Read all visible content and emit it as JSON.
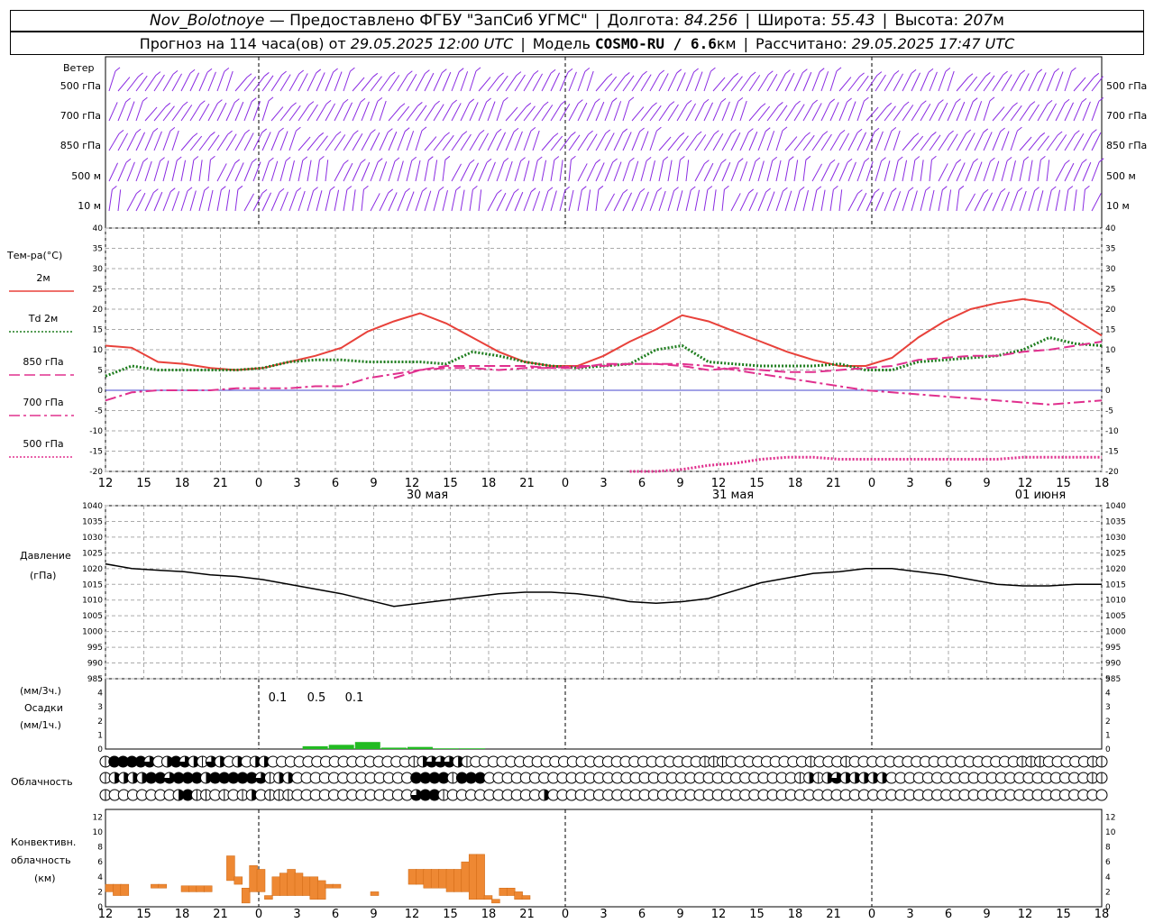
{
  "header": {
    "station": "Nov_Bolotnoye",
    "provider": "— Предоставлено ФГБУ \"ЗапСиб УГМС\"",
    "lon_label": "Долгота:",
    "lon_value": "84.256",
    "lat_label": "Широта:",
    "lat_value": "55.43",
    "alt_label": "Высота:",
    "alt_value": "207",
    "alt_unit": "м",
    "forecast_text": "Прогноз на 114 часа(ов) от",
    "forecast_time": "29.05.2025 12:00 UTC",
    "model_label": "Модель",
    "model_value": "COSMO-RU / 6.6",
    "model_unit": "км",
    "computed_label": "Рассчитано:",
    "computed_time": "29.05.2025 17:47 UTC"
  },
  "wind_panel": {
    "title": "Ветер",
    "levels": [
      "500 гПа",
      "700 гПа",
      "850 гПа",
      "500 м",
      "10  м"
    ],
    "color": "#8a2be2"
  },
  "chart_data": [
    {
      "type": "line",
      "title": "Тем-ра(°C)",
      "ylim": [
        -20,
        40
      ],
      "yticks": [
        -20,
        -15,
        -10,
        -5,
        0,
        5,
        10,
        15,
        20,
        25,
        30,
        35,
        40
      ],
      "x": [
        0,
        1,
        2,
        3,
        4,
        5,
        6,
        7,
        8,
        9,
        10,
        11,
        12,
        13,
        14,
        15,
        16,
        17,
        18,
        19,
        20,
        21,
        22,
        23,
        24,
        25,
        26,
        27,
        28,
        29,
        30,
        31,
        32,
        33,
        34,
        35,
        36,
        37,
        38
      ],
      "series": [
        {
          "name": "2м",
          "color": "#e8413a",
          "style": "solid",
          "values": [
            11,
            10.5,
            7,
            6.5,
            5.5,
            5,
            5.5,
            7,
            8.5,
            10.5,
            14.5,
            17,
            19,
            16.5,
            13,
            9.5,
            7,
            6,
            6,
            8.5,
            12,
            15,
            18.5,
            17,
            14.5,
            12,
            9.5,
            7.5,
            6,
            6,
            8,
            13,
            17,
            20,
            21.5,
            22.5,
            21.5,
            17.5,
            13.5
          ]
        },
        {
          "name": "Td 2м",
          "color": "#1e7d1e",
          "style": "dotted",
          "values": [
            3.5,
            6,
            5,
            5,
            5,
            5,
            5.5,
            7,
            7.5,
            7.5,
            7,
            7,
            7,
            6.5,
            9.5,
            8.5,
            7,
            6,
            5.5,
            6,
            6.5,
            10,
            11,
            7,
            6.5,
            6,
            6,
            6,
            6.5,
            5,
            5,
            7,
            7.5,
            8,
            8.5,
            10,
            13,
            11.5,
            11
          ]
        },
        {
          "name": "850 гПа",
          "color": "#e0308e",
          "style": "dash",
          "values": [
            null,
            null,
            null,
            null,
            null,
            null,
            null,
            null,
            null,
            null,
            null,
            3,
            5,
            6,
            6,
            6,
            6,
            5.5,
            5.5,
            6.5,
            6.5,
            6.5,
            6,
            5,
            5.5,
            5,
            4.5,
            4.5,
            5,
            5.5,
            6,
            7.5,
            8,
            8.5,
            8.5,
            9.5,
            10,
            11,
            12
          ]
        },
        {
          "name": "700 гПа",
          "color": "#e0308e",
          "style": "dashdot",
          "values": [
            -2.5,
            -0.5,
            0,
            0,
            0,
            0.5,
            0.5,
            0.5,
            1,
            1,
            3,
            4,
            5,
            5.5,
            5.5,
            5,
            5.5,
            5.5,
            6,
            6,
            6.5,
            6.5,
            6.5,
            6,
            5,
            4,
            3,
            2,
            1,
            0,
            -0.5,
            -1,
            -1.5,
            -2,
            -2.5,
            -3,
            -3.5,
            -3,
            -2.5
          ]
        },
        {
          "name": "500 гПа",
          "color": "#e0308e",
          "style": "dotted",
          "values": [
            null,
            null,
            null,
            null,
            null,
            null,
            null,
            null,
            null,
            null,
            null,
            null,
            null,
            null,
            null,
            null,
            null,
            null,
            null,
            null,
            -20,
            -20,
            -19.5,
            -18.5,
            -18,
            -17,
            -16.5,
            -16.5,
            -17,
            -17,
            -17,
            -17,
            -17,
            -17,
            -17,
            -16.5,
            -16.5,
            -16.5,
            -16.5
          ]
        }
      ]
    },
    {
      "type": "line",
      "title": "Давление",
      "unit": "(гПа)",
      "ylim": [
        985,
        1040
      ],
      "yticks": [
        985,
        990,
        995,
        1000,
        1005,
        1010,
        1015,
        1020,
        1025,
        1030,
        1035,
        1040
      ],
      "x": [
        0,
        1,
        2,
        3,
        4,
        5,
        6,
        7,
        8,
        9,
        10,
        11,
        12,
        13,
        14,
        15,
        16,
        17,
        18,
        19,
        20,
        21,
        22,
        23,
        24,
        25,
        26,
        27,
        28,
        29,
        30,
        31,
        32,
        33,
        34,
        35,
        36,
        37,
        38
      ],
      "series": [
        {
          "name": "Давление",
          "color": "#000000",
          "values": [
            1021.5,
            1020,
            1019.5,
            1019,
            1018,
            1017.5,
            1016.5,
            1015,
            1013.5,
            1012,
            1010,
            1008,
            1009,
            1010,
            1011,
            1012,
            1012.5,
            1012.5,
            1012,
            1011,
            1009.5,
            1009,
            1009.5,
            1010.5,
            1013,
            1015.5,
            1017,
            1018.5,
            1019,
            1020,
            1020,
            1019,
            1018,
            1016.5,
            1015,
            1014.5,
            1014.5,
            1015,
            1015
          ]
        }
      ]
    },
    {
      "type": "bar",
      "title": "Осадки",
      "unit_top": "(мм/3ч.)",
      "unit_bottom": "(мм/1ч.)",
      "ylim": [
        0,
        5
      ],
      "yticks": [
        0,
        1,
        2,
        3,
        4,
        5
      ],
      "annotations": [
        "0.1",
        "0.5",
        "0.1"
      ],
      "color": "#22bb22",
      "values": [
        0,
        0,
        0,
        0,
        0,
        0,
        0,
        0,
        0.2,
        0.3,
        0.5,
        0.1,
        0.15,
        0.05,
        0.05,
        0,
        0,
        0,
        0,
        0,
        0,
        0,
        0,
        0,
        0,
        0,
        0,
        0,
        0,
        0,
        0,
        0,
        0,
        0,
        0,
        0,
        0,
        0,
        0
      ]
    },
    {
      "type": "bar",
      "title": "Конвективн. облачность",
      "unit": "(км)",
      "ylim": [
        0,
        13
      ],
      "yticks": [
        0,
        2,
        4,
        6,
        8,
        10,
        12
      ],
      "color": "#ee8833",
      "bars": [
        {
          "x": 0,
          "base": 2,
          "top": 3
        },
        {
          "x": 1,
          "base": 1.5,
          "top": 3
        },
        {
          "x": 2,
          "base": 1.5,
          "top": 3
        },
        {
          "x": 6,
          "base": 2.5,
          "top": 3
        },
        {
          "x": 7,
          "base": 2.5,
          "top": 3
        },
        {
          "x": 10,
          "base": 2,
          "top": 2.8
        },
        {
          "x": 11,
          "base": 2,
          "top": 2.8
        },
        {
          "x": 12,
          "base": 2,
          "top": 2.8
        },
        {
          "x": 13,
          "base": 2,
          "top": 2.8
        },
        {
          "x": 16,
          "base": 3.5,
          "top": 6.8
        },
        {
          "x": 17,
          "base": 3,
          "top": 4
        },
        {
          "x": 18,
          "base": 0.5,
          "top": 2.5
        },
        {
          "x": 19,
          "base": 2,
          "top": 5.5
        },
        {
          "x": 20,
          "base": 2,
          "top": 5
        },
        {
          "x": 21,
          "base": 1,
          "top": 1.5
        },
        {
          "x": 22,
          "base": 1.5,
          "top": 4
        },
        {
          "x": 23,
          "base": 1.5,
          "top": 4.5
        },
        {
          "x": 24,
          "base": 1.5,
          "top": 5
        },
        {
          "x": 25,
          "base": 1.5,
          "top": 4.5
        },
        {
          "x": 26,
          "base": 1.5,
          "top": 4
        },
        {
          "x": 27,
          "base": 1,
          "top": 4
        },
        {
          "x": 28,
          "base": 1,
          "top": 3.5
        },
        {
          "x": 29,
          "base": 2.5,
          "top": 3
        },
        {
          "x": 30,
          "base": 2.5,
          "top": 3
        },
        {
          "x": 35,
          "base": 1.5,
          "top": 2
        },
        {
          "x": 40,
          "base": 3,
          "top": 5
        },
        {
          "x": 41,
          "base": 3,
          "top": 5
        },
        {
          "x": 42,
          "base": 2.5,
          "top": 5
        },
        {
          "x": 43,
          "base": 2.5,
          "top": 5
        },
        {
          "x": 44,
          "base": 2.5,
          "top": 5
        },
        {
          "x": 45,
          "base": 2,
          "top": 5
        },
        {
          "x": 46,
          "base": 2,
          "top": 5
        },
        {
          "x": 47,
          "base": 2,
          "top": 6
        },
        {
          "x": 48,
          "base": 1,
          "top": 7
        },
        {
          "x": 49,
          "base": 1,
          "top": 7
        },
        {
          "x": 50,
          "base": 1,
          "top": 1.5
        },
        {
          "x": 51,
          "base": 0.5,
          "top": 1
        },
        {
          "x": 52,
          "base": 1.5,
          "top": 2.5
        },
        {
          "x": 53,
          "base": 1.5,
          "top": 2.5
        },
        {
          "x": 54,
          "base": 1,
          "top": 2
        },
        {
          "x": 55,
          "base": 1,
          "top": 1.5
        }
      ]
    }
  ],
  "cloud_panel": {
    "title": "Облачность",
    "rows": [
      [
        1,
        4,
        4,
        4,
        4,
        3,
        0,
        2,
        4,
        3,
        2,
        1,
        3,
        2,
        0,
        2,
        0,
        2,
        2,
        0,
        0,
        0,
        0,
        0,
        0,
        0,
        0,
        0,
        0,
        0,
        0,
        0,
        0,
        0,
        0,
        1,
        2,
        3,
        3,
        3,
        2,
        1,
        0,
        0,
        0,
        0,
        0,
        0,
        0,
        0,
        0,
        0,
        0,
        0,
        0,
        0,
        0,
        0,
        0,
        0,
        0,
        0,
        0,
        0,
        0,
        0,
        0,
        0,
        1,
        1,
        1,
        0,
        0,
        0,
        0,
        0,
        0,
        0,
        0,
        0,
        1,
        0,
        0,
        0,
        1,
        0,
        0,
        0,
        0,
        0,
        0,
        0,
        0,
        0,
        0,
        0,
        0,
        0,
        0,
        0,
        0,
        0,
        0,
        0,
        1,
        1,
        1,
        0,
        0,
        0,
        0,
        0,
        1,
        1
      ],
      [
        1,
        2,
        2,
        2,
        2,
        4,
        4,
        3,
        4,
        4,
        4,
        2,
        4,
        4,
        4,
        4,
        4,
        3,
        1,
        2,
        2,
        0,
        0,
        0,
        0,
        0,
        0,
        0,
        0,
        0,
        0,
        0,
        0,
        0,
        4,
        4,
        4,
        4,
        1,
        4,
        4,
        4,
        0,
        0,
        0,
        0,
        0,
        0,
        0,
        0,
        0,
        0,
        0,
        0,
        0,
        0,
        0,
        0,
        0,
        0,
        0,
        0,
        0,
        0,
        0,
        0,
        0,
        0,
        0,
        0,
        0,
        0,
        0,
        0,
        0,
        0,
        1,
        2,
        1,
        2,
        3,
        2,
        2,
        2,
        2,
        2,
        0,
        0,
        0,
        0,
        0,
        0,
        0,
        0,
        0,
        0,
        0,
        0,
        0,
        0,
        0,
        0,
        0,
        0,
        0,
        0,
        0,
        0,
        1,
        1
      ],
      [
        1,
        0,
        0,
        0,
        0,
        0,
        0,
        0,
        2,
        4,
        1,
        1,
        0,
        1,
        0,
        1,
        2,
        0,
        1,
        1,
        1,
        0,
        0,
        0,
        0,
        0,
        0,
        0,
        0,
        0,
        0,
        0,
        0,
        0,
        3,
        4,
        4,
        1,
        0,
        0,
        0,
        0,
        0,
        0,
        0,
        0,
        0,
        0,
        2,
        0,
        0,
        0,
        0,
        0,
        0,
        0,
        0,
        0,
        0,
        0,
        0,
        0,
        0,
        0,
        0,
        0,
        0,
        0,
        0,
        0,
        0,
        0,
        0,
        0,
        0,
        0,
        0,
        0,
        0,
        0,
        0,
        0,
        0,
        0,
        0,
        0,
        0,
        0,
        0,
        0,
        0,
        0,
        0,
        0,
        0,
        0,
        0,
        0,
        0,
        0,
        0,
        0,
        0,
        0,
        0,
        0,
        0,
        0,
        0,
        0
      ]
    ]
  },
  "time_axis": {
    "hours": [
      "12",
      "15",
      "18",
      "21",
      "0",
      "3",
      "6",
      "9",
      "12",
      "15",
      "18",
      "21",
      "0",
      "3",
      "6",
      "9",
      "12",
      "15",
      "18",
      "21",
      "0",
      "3",
      "6",
      "9",
      "12",
      "15",
      "18"
    ],
    "dates": [
      "30 мая",
      "31 мая",
      "01 июня"
    ]
  }
}
